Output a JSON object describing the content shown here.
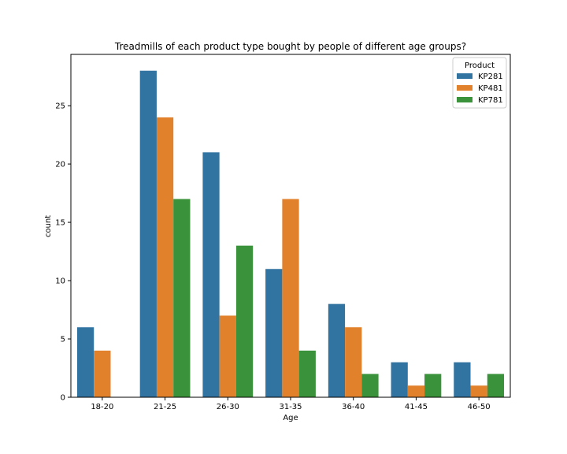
{
  "chart_data": {
    "type": "bar",
    "title": "Treadmills of each product type bought by people of different age groups?",
    "xlabel": "Age",
    "ylabel": "count",
    "categories": [
      "18-20",
      "21-25",
      "26-30",
      "31-35",
      "36-40",
      "41-45",
      "46-50"
    ],
    "series": [
      {
        "name": "KP281",
        "color": "#3274a1",
        "values": [
          6,
          28,
          21,
          11,
          8,
          3,
          3
        ]
      },
      {
        "name": "KP481",
        "color": "#e1812c",
        "values": [
          4,
          24,
          7,
          17,
          6,
          1,
          1
        ]
      },
      {
        "name": "KP781",
        "color": "#3a923a",
        "values": [
          0,
          17,
          13,
          4,
          2,
          2,
          2
        ]
      }
    ],
    "ylim": [
      0,
      29.4
    ],
    "yticks": [
      0,
      5,
      10,
      15,
      20,
      25
    ],
    "legend": {
      "title": "Product",
      "position": "top-right"
    },
    "grid": false
  }
}
